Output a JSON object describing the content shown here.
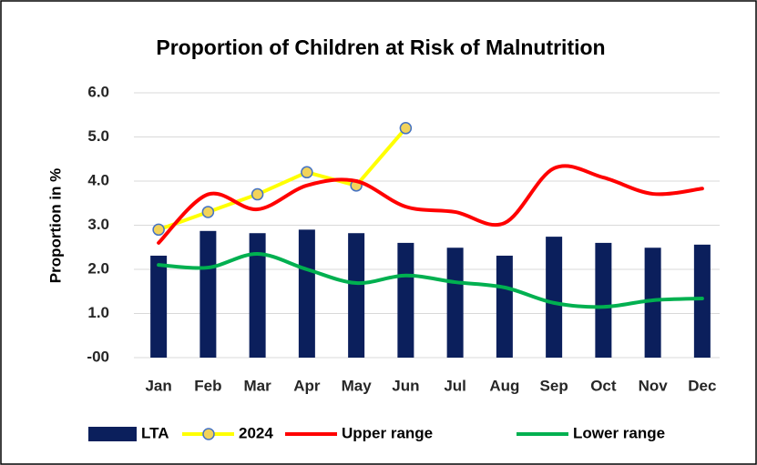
{
  "chart_data": {
    "type": "combo",
    "title": "Proportion of Children at Risk of Malnutrition",
    "y_label": "Proportion in %",
    "categories": [
      "Jan",
      "Feb",
      "Mar",
      "Apr",
      "May",
      "Jun",
      "Jul",
      "Aug",
      "Sep",
      "Oct",
      "Nov",
      "Dec"
    ],
    "series": [
      {
        "name": "LTA",
        "type": "bar",
        "color": "#0b1f5c",
        "values": [
          2.31,
          2.87,
          2.82,
          2.9,
          2.82,
          2.6,
          2.49,
          2.31,
          2.74,
          2.6,
          2.49,
          2.56
        ]
      },
      {
        "name": "2024",
        "type": "line",
        "color": "#ffff00",
        "markers": true,
        "marker_color": "#f2d35a",
        "marker_edge": "#4472c4",
        "smooth": false,
        "values": [
          2.9,
          3.3,
          3.7,
          4.2,
          3.9,
          5.2,
          null,
          null,
          null,
          null,
          null,
          null
        ]
      },
      {
        "name": "Upper range",
        "type": "line",
        "color": "#ff0000",
        "markers": false,
        "smooth": true,
        "values": [
          2.6,
          3.7,
          3.36,
          3.9,
          4.0,
          3.42,
          3.3,
          3.05,
          4.29,
          4.08,
          3.71,
          3.83
        ]
      },
      {
        "name": "Lower range",
        "type": "line",
        "color": "#00b050",
        "markers": false,
        "smooth": true,
        "values": [
          2.1,
          2.04,
          2.35,
          2.0,
          1.69,
          1.86,
          1.71,
          1.59,
          1.24,
          1.15,
          1.3,
          1.34
        ]
      }
    ],
    "ylim": [
      0,
      6
    ],
    "yticks": [
      {
        "value": 0,
        "label": "-00"
      },
      {
        "value": 1,
        "label": "1.0"
      },
      {
        "value": 2,
        "label": "2.0"
      },
      {
        "value": 3,
        "label": "3.0"
      },
      {
        "value": 4,
        "label": "4.0"
      },
      {
        "value": 5,
        "label": "5.0"
      },
      {
        "value": 6,
        "label": "6.0"
      }
    ],
    "grid": true,
    "legend": "bottom"
  }
}
